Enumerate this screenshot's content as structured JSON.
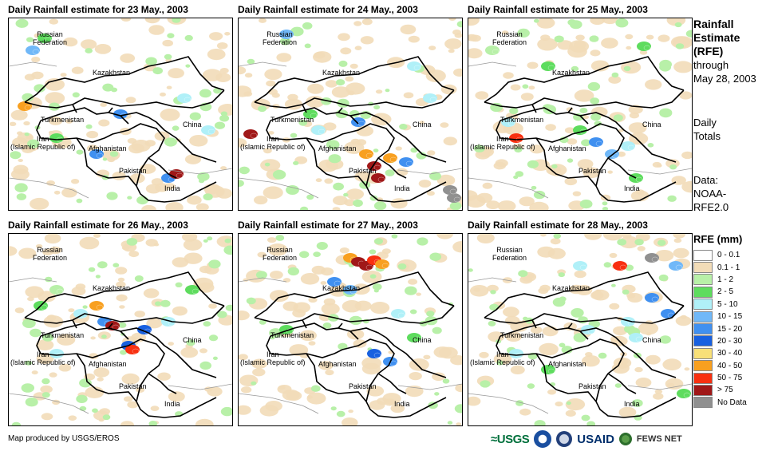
{
  "panels": [
    {
      "title": "Daily Rainfall estimate for 23 May., 2003",
      "cells": [
        [
          20,
          110,
          9
        ],
        [
          30,
          40,
          5
        ],
        [
          45,
          25,
          3
        ],
        [
          110,
          170,
          6
        ],
        [
          140,
          120,
          6
        ],
        [
          250,
          140,
          4
        ],
        [
          200,
          200,
          6
        ],
        [
          210,
          195,
          11
        ],
        [
          60,
          150,
          3
        ],
        [
          220,
          100,
          4
        ]
      ]
    },
    {
      "title": "Daily Rainfall estimate for 24 May., 2003",
      "cells": [
        [
          60,
          20,
          5
        ],
        [
          90,
          120,
          3
        ],
        [
          100,
          140,
          4
        ],
        [
          150,
          130,
          6
        ],
        [
          160,
          170,
          9
        ],
        [
          170,
          185,
          11
        ],
        [
          175,
          200,
          11
        ],
        [
          190,
          175,
          9
        ],
        [
          210,
          180,
          6
        ],
        [
          270,
          225,
          12
        ],
        [
          265,
          215,
          12
        ],
        [
          15,
          145,
          11
        ],
        [
          220,
          60,
          4
        ],
        [
          240,
          100,
          4
        ]
      ]
    },
    {
      "title": "Daily Rainfall estimate for 25 May., 2003",
      "cells": [
        [
          50,
          130,
          4
        ],
        [
          60,
          150,
          10
        ],
        [
          140,
          140,
          3
        ],
        [
          160,
          155,
          6
        ],
        [
          180,
          170,
          5
        ],
        [
          200,
          160,
          4
        ],
        [
          210,
          200,
          3
        ],
        [
          100,
          60,
          3
        ],
        [
          30,
          40,
          2
        ],
        [
          220,
          35,
          3
        ]
      ]
    },
    {
      "title": "Daily Rainfall estimate for 26 May., 2003",
      "cells": [
        [
          40,
          90,
          3
        ],
        [
          60,
          70,
          2
        ],
        [
          90,
          100,
          4
        ],
        [
          120,
          110,
          6
        ],
        [
          130,
          115,
          11
        ],
        [
          110,
          90,
          9
        ],
        [
          150,
          140,
          7
        ],
        [
          155,
          145,
          10
        ],
        [
          170,
          120,
          7
        ],
        [
          200,
          110,
          4
        ],
        [
          60,
          150,
          4
        ],
        [
          230,
          70,
          3
        ]
      ]
    },
    {
      "title": "Daily Rainfall estimate for 27 May., 2003",
      "cells": [
        [
          140,
          30,
          9
        ],
        [
          150,
          35,
          11
        ],
        [
          160,
          40,
          11
        ],
        [
          170,
          33,
          10
        ],
        [
          180,
          38,
          9
        ],
        [
          120,
          60,
          6
        ],
        [
          140,
          70,
          5
        ],
        [
          170,
          150,
          7
        ],
        [
          190,
          160,
          6
        ],
        [
          60,
          120,
          3
        ],
        [
          200,
          100,
          4
        ],
        [
          220,
          130,
          3
        ]
      ]
    },
    {
      "title": "Daily Rainfall estimate for 28 May., 2003",
      "cells": [
        [
          230,
          80,
          6
        ],
        [
          250,
          100,
          6
        ],
        [
          210,
          130,
          4
        ],
        [
          200,
          110,
          4
        ],
        [
          150,
          120,
          4
        ],
        [
          140,
          40,
          4
        ],
        [
          190,
          40,
          10
        ],
        [
          260,
          40,
          5
        ],
        [
          230,
          30,
          12
        ],
        [
          60,
          150,
          4
        ],
        [
          100,
          170,
          3
        ],
        [
          270,
          200,
          3
        ]
      ]
    }
  ],
  "map_labels": {
    "russia": "Russian\nFederation",
    "kazakhstan": "Kazakhstan",
    "turkmenistan": "Turkmenistan",
    "iran": "Iran\n(Islamic Republic of)",
    "afghanistan": "Afghanistan",
    "pakistan": "Pakistan",
    "china": "China",
    "india": "India"
  },
  "side_text": {
    "h1": "Rainfall",
    "h2": "Estimate",
    "h3": "(RFE)",
    "l1": "through",
    "l2": "May 28, 2003",
    "d1": "Daily",
    "d2": "Totals",
    "s1": "Data:",
    "s2": "NOAA-",
    "s3": "RFE2.0"
  },
  "legend": {
    "title": "RFE (mm)",
    "items": [
      {
        "label": "0 - 0.1",
        "color": "#ffffff"
      },
      {
        "label": "0.1 - 1",
        "color": "#f2dcb8"
      },
      {
        "label": "1 - 2",
        "color": "#b8f0a8"
      },
      {
        "label": "2 - 5",
        "color": "#5edc5e"
      },
      {
        "label": "5 - 10",
        "color": "#b0f0f8"
      },
      {
        "label": "10 - 15",
        "color": "#70b8f8"
      },
      {
        "label": "15 - 20",
        "color": "#4090f0"
      },
      {
        "label": "20 - 30",
        "color": "#1860e0"
      },
      {
        "label": "30 - 40",
        "color": "#f8e078"
      },
      {
        "label": "40 - 50",
        "color": "#f8a020"
      },
      {
        "label": "50 - 75",
        "color": "#f83010"
      },
      {
        "label": "> 75",
        "color": "#a01818"
      },
      {
        "label": "No Data",
        "color": "#909090"
      }
    ]
  },
  "credit": "Map produced by USGS/EROS",
  "logos": {
    "usgs": "≈USGS",
    "usaid": "USAID",
    "fews": "FEWS NET"
  }
}
